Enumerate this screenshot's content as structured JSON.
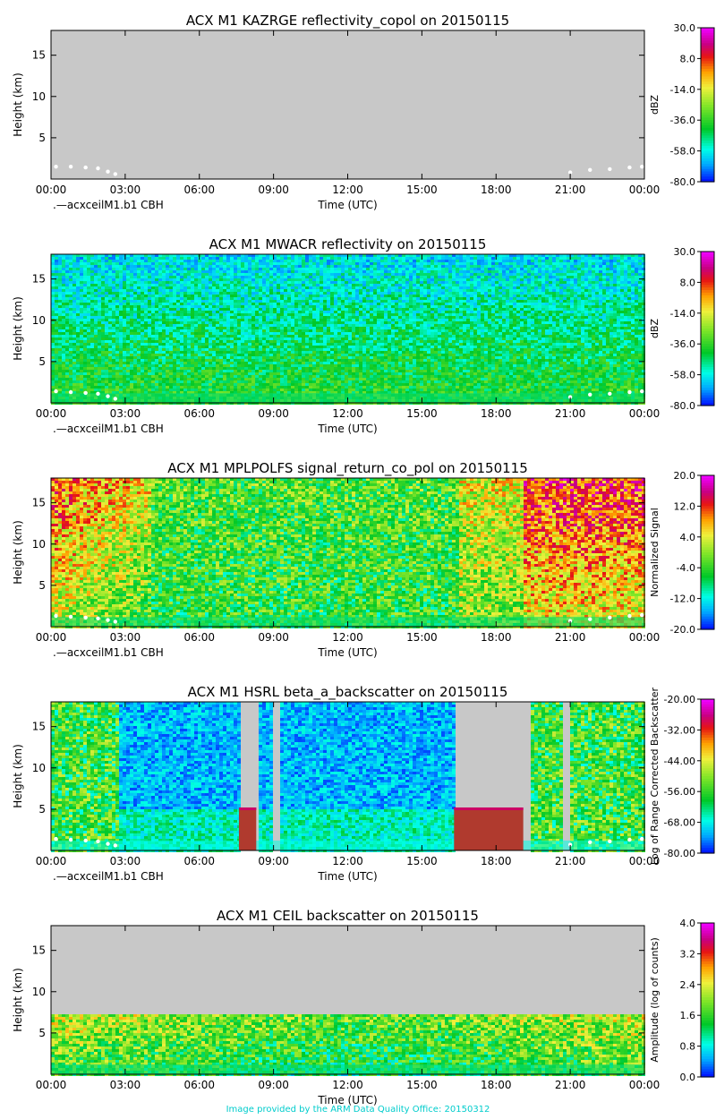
{
  "footer": "Image provided by the ARM Data Quality Office: 20150312",
  "common": {
    "xlabel": "Time (UTC)",
    "ylabel": "Height (km)",
    "xticks": [
      "00:00",
      "03:00",
      "06:00",
      "09:00",
      "12:00",
      "15:00",
      "18:00",
      "21:00",
      "00:00"
    ],
    "yticks": [
      5,
      10,
      15
    ],
    "yrange": [
      0,
      18
    ],
    "xrange_hours": [
      0,
      24
    ],
    "cbh_label": ".—acxceilM1.b1 CBH",
    "background_color": "#c8c8c8",
    "cbh_color": "#ffffff"
  },
  "chart_data": [
    {
      "type": "heatmap",
      "title": "ACX M1 KAZRGE reflectivity_copol on 20150115",
      "colorbar_label": "dBZ",
      "colorbar_range": [
        -80,
        30
      ],
      "colorbar_ticks": [
        "30.0",
        "8.0",
        "-14.0",
        "-36.0",
        "-58.0",
        "-80.0"
      ],
      "has_cbh_legend": true,
      "cbh": [
        {
          "x": 0.2,
          "y": 1.5
        },
        {
          "x": 0.8,
          "y": 1.5
        },
        {
          "x": 1.4,
          "y": 1.4
        },
        {
          "x": 1.9,
          "y": 1.3
        },
        {
          "x": 2.3,
          "y": 0.9
        },
        {
          "x": 2.6,
          "y": 0.6
        },
        {
          "x": 21.0,
          "y": 0.8
        },
        {
          "x": 21.8,
          "y": 1.1
        },
        {
          "x": 22.6,
          "y": 1.2
        },
        {
          "x": 23.4,
          "y": 1.4
        },
        {
          "x": 23.9,
          "y": 1.5
        }
      ]
    },
    {
      "type": "heatmap",
      "title": "ACX M1 MWACR reflectivity on 20150115",
      "colorbar_label": "dBZ",
      "colorbar_range": [
        -80,
        30
      ],
      "colorbar_ticks": [
        "30.0",
        "8.0",
        "-14.0",
        "-36.0",
        "-58.0",
        "-80.0"
      ],
      "has_cbh_legend": true,
      "cbh": [
        {
          "x": 0.2,
          "y": 1.4
        },
        {
          "x": 0.8,
          "y": 1.3
        },
        {
          "x": 1.4,
          "y": 1.2
        },
        {
          "x": 1.9,
          "y": 1.1
        },
        {
          "x": 2.3,
          "y": 0.8
        },
        {
          "x": 2.6,
          "y": 0.5
        },
        {
          "x": 21.0,
          "y": 0.7
        },
        {
          "x": 21.8,
          "y": 1.0
        },
        {
          "x": 22.6,
          "y": 1.1
        },
        {
          "x": 23.4,
          "y": 1.3
        },
        {
          "x": 23.9,
          "y": 1.4
        }
      ]
    },
    {
      "type": "heatmap",
      "title": "ACX M1 MPLPOLFS signal_return_co_pol on 20150115",
      "colorbar_label": "Normalized Signal",
      "colorbar_range": [
        -20,
        20
      ],
      "colorbar_ticks": [
        "20.0",
        "12.0",
        "4.0",
        "-4.0",
        "-12.0",
        "-20.0"
      ],
      "has_cbh_legend": true,
      "cbh": [
        {
          "x": 0.2,
          "y": 1.3
        },
        {
          "x": 0.8,
          "y": 1.2
        },
        {
          "x": 1.4,
          "y": 1.1
        },
        {
          "x": 1.9,
          "y": 1.0
        },
        {
          "x": 2.3,
          "y": 0.8
        },
        {
          "x": 2.6,
          "y": 0.6
        },
        {
          "x": 21.0,
          "y": 0.7
        },
        {
          "x": 21.8,
          "y": 0.9
        },
        {
          "x": 22.6,
          "y": 1.1
        },
        {
          "x": 23.4,
          "y": 1.3
        },
        {
          "x": 23.9,
          "y": 1.4
        }
      ]
    },
    {
      "type": "heatmap",
      "title": "ACX M1 HSRL beta_a_backscatter on 20150115",
      "colorbar_label": "Log of Range Corrected Backscatter",
      "colorbar_range": [
        -80,
        -20
      ],
      "colorbar_ticks": [
        "-20.00",
        "-32.00",
        "-44.00",
        "-56.00",
        "-68.00",
        "-80.00"
      ],
      "has_cbh_legend": true,
      "cbh": [
        {
          "x": 0.2,
          "y": 1.4
        },
        {
          "x": 0.8,
          "y": 1.3
        },
        {
          "x": 1.4,
          "y": 1.2
        },
        {
          "x": 1.9,
          "y": 1.1
        },
        {
          "x": 2.3,
          "y": 0.8
        },
        {
          "x": 2.6,
          "y": 0.6
        },
        {
          "x": 21.0,
          "y": 0.7
        },
        {
          "x": 21.8,
          "y": 1.0
        },
        {
          "x": 22.6,
          "y": 1.1
        },
        {
          "x": 23.4,
          "y": 1.3
        },
        {
          "x": 23.9,
          "y": 1.4
        }
      ]
    },
    {
      "type": "heatmap",
      "title": "ACX M1 CEIL backscatter on 20150115",
      "colorbar_label": "Amplitude (log of counts)",
      "colorbar_range": [
        0,
        4
      ],
      "colorbar_ticks": [
        "4.0",
        "3.2",
        "2.4",
        "1.6",
        "0.8",
        "0.0"
      ],
      "has_cbh_legend": false,
      "cbh": []
    }
  ]
}
